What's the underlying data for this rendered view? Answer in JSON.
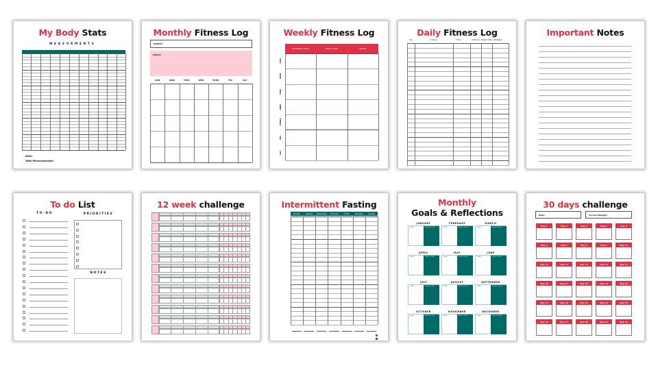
{
  "colors": {
    "red": "#e03145",
    "teal": "#006b66",
    "pink": "#ffcdd6",
    "light_green": "#d9e8df"
  },
  "body_stats": {
    "title_red": "My Body",
    "title_black": "Stats",
    "subtitle": "MEASURMENTS",
    "date_label": "Date:",
    "total_label": "Total Measurements:"
  },
  "monthly_log": {
    "title_red": "Monthly",
    "title_black": "Fitness Log",
    "month_label": "MONTH:",
    "goals_label": "GOALS:",
    "days": [
      "SUN",
      "MON",
      "TUES",
      "WED",
      "THUR",
      "FRI",
      "SAT"
    ]
  },
  "weekly_log": {
    "title_red": "Weekly",
    "title_black": "Fitness Log",
    "columns": [
      "WORKOUT PLAN",
      "MEAL PLAN",
      "NOTES"
    ],
    "days": [
      "SUN",
      "MON",
      "TUES",
      "WED",
      "THURS",
      "FRI",
      "SAT"
    ]
  },
  "daily_log": {
    "title_red": "Daily",
    "title_black": "Fitness Log",
    "columns": [
      "Day",
      "Activity",
      "Time",
      "Distance",
      "Weight lifted",
      "Sets/Reps",
      ""
    ]
  },
  "notes": {
    "title_red": "Important",
    "title_black": "Notes"
  },
  "todo": {
    "title_red": "To do",
    "title_black": "List",
    "todo_label": "TO-DO",
    "priorities_label": "PRIORITIES",
    "notes_label": "NOTES"
  },
  "week12": {
    "title_red": "12 week",
    "title_black": "challenge"
  },
  "fasting": {
    "title_red": "Intermittent",
    "title_black": "Fasting",
    "days": [
      "Monday",
      "Tuesday",
      "Wednesday",
      "Thursday",
      "Friday",
      "Saturday",
      "Sunday"
    ]
  },
  "goals": {
    "title_red": "Monthly",
    "title_black": "Goals & Reflections",
    "goal_label": "GOAL",
    "reflection_label": "REFLECTIONS",
    "months": [
      "JANUARY",
      "FEBRUARY",
      "MARCH",
      "APRIL",
      "MAY",
      "JUNE",
      "JULY",
      "AUGUST",
      "SEPTEMBER",
      "OCTOBER",
      "NOVEMBER",
      "DECEMBER"
    ]
  },
  "days30": {
    "title_red": "30 days",
    "title_black": "challenge",
    "date_label": "Date:",
    "weight_label": "Current Weight:",
    "days": [
      "Day 1",
      "Day 2",
      "Day 3",
      "Day 4",
      "Day 5",
      "Day 6",
      "Day 7",
      "Day 8",
      "Day 9",
      "Day 10",
      "Day 11",
      "Day 12",
      "Day 13",
      "Day 14",
      "Day 15",
      "Day 16",
      "Day 17",
      "Day 18",
      "Day 19",
      "Day 20",
      "Day 21",
      "Day 22",
      "Day 23",
      "Day 24",
      "Day 25",
      "Day 26",
      "Day 27",
      "Day 28",
      "Day 29",
      "Day 30"
    ]
  }
}
